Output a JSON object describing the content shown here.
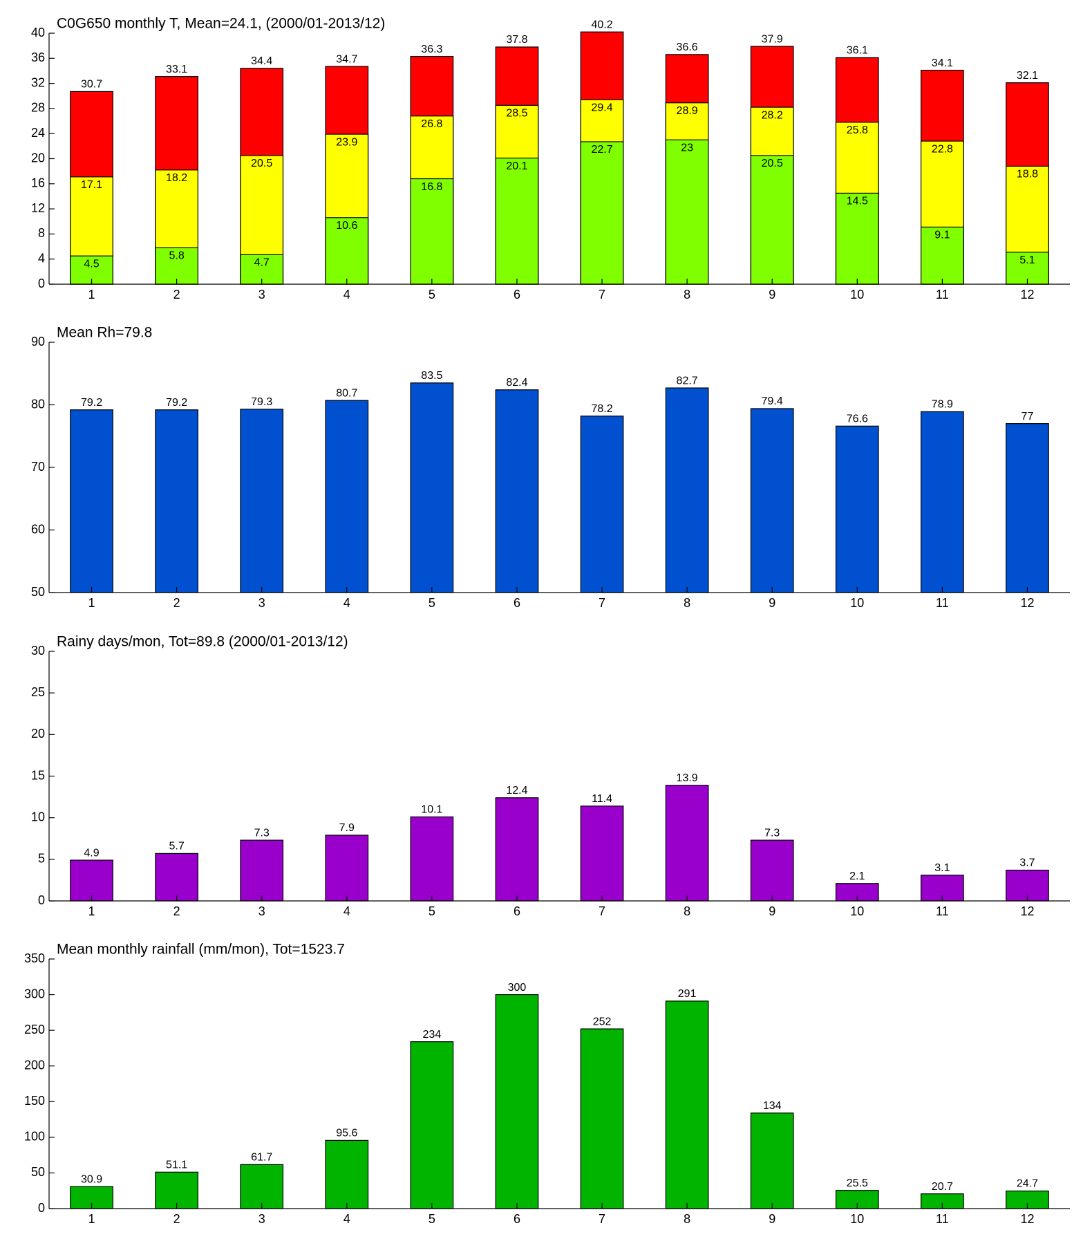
{
  "chart_data": [
    {
      "type": "overlap_bar",
      "title": "C0G650 monthly T, Mean=24.1, (2000/01-2013/12)",
      "categories": [
        1,
        2,
        3,
        4,
        5,
        6,
        7,
        8,
        9,
        10,
        11,
        12
      ],
      "series": [
        {
          "color": "#ff0000",
          "values": [
            30.7,
            33.1,
            34.4,
            34.7,
            36.3,
            37.8,
            40.2,
            36.6,
            37.9,
            36.1,
            34.1,
            32.1
          ]
        },
        {
          "color": "#ffff00",
          "values": [
            17.1,
            18.2,
            20.5,
            23.9,
            26.8,
            28.5,
            29.4,
            28.9,
            28.2,
            25.8,
            22.8,
            18.8
          ]
        },
        {
          "color": "#80ff00",
          "values": [
            4.5,
            5.8,
            4.7,
            10.6,
            16.8,
            20.1,
            22.7,
            23,
            20.5,
            14.5,
            9.1,
            5.1
          ]
        }
      ],
      "ylim": [
        0,
        40
      ],
      "yticks": [
        0,
        4,
        8,
        12,
        16,
        20,
        24,
        28,
        32,
        36,
        40
      ]
    },
    {
      "type": "bar",
      "title": "Mean Rh=79.8",
      "categories": [
        1,
        2,
        3,
        4,
        5,
        6,
        7,
        8,
        9,
        10,
        11,
        12
      ],
      "values": [
        79.2,
        79.2,
        79.3,
        80.7,
        83.5,
        82.4,
        78.2,
        82.7,
        79.4,
        76.6,
        78.9,
        77
      ],
      "color": "#0050d0",
      "ylim": [
        50,
        90
      ],
      "yticks": [
        50,
        60,
        70,
        80,
        90
      ]
    },
    {
      "type": "bar",
      "title": "Rainy days/mon, Tot=89.8 (2000/01-2013/12)",
      "categories": [
        1,
        2,
        3,
        4,
        5,
        6,
        7,
        8,
        9,
        10,
        11,
        12
      ],
      "values": [
        4.9,
        5.7,
        7.3,
        7.9,
        10.1,
        12.4,
        11.4,
        13.9,
        7.3,
        2.1,
        3.1,
        3.7
      ],
      "color": "#9900cc",
      "ylim": [
        0,
        30
      ],
      "yticks": [
        0,
        5,
        10,
        15,
        20,
        25,
        30
      ]
    },
    {
      "type": "bar",
      "title": "Mean monthly rainfall (mm/mon), Tot=1523.7",
      "categories": [
        1,
        2,
        3,
        4,
        5,
        6,
        7,
        8,
        9,
        10,
        11,
        12
      ],
      "values": [
        30.9,
        51.1,
        61.7,
        95.6,
        234,
        300,
        252,
        291,
        134,
        25.5,
        20.7,
        24.7
      ],
      "color": "#00b400",
      "ylim": [
        0,
        350
      ],
      "yticks": [
        0,
        50,
        100,
        150,
        200,
        250,
        300,
        350
      ]
    }
  ]
}
